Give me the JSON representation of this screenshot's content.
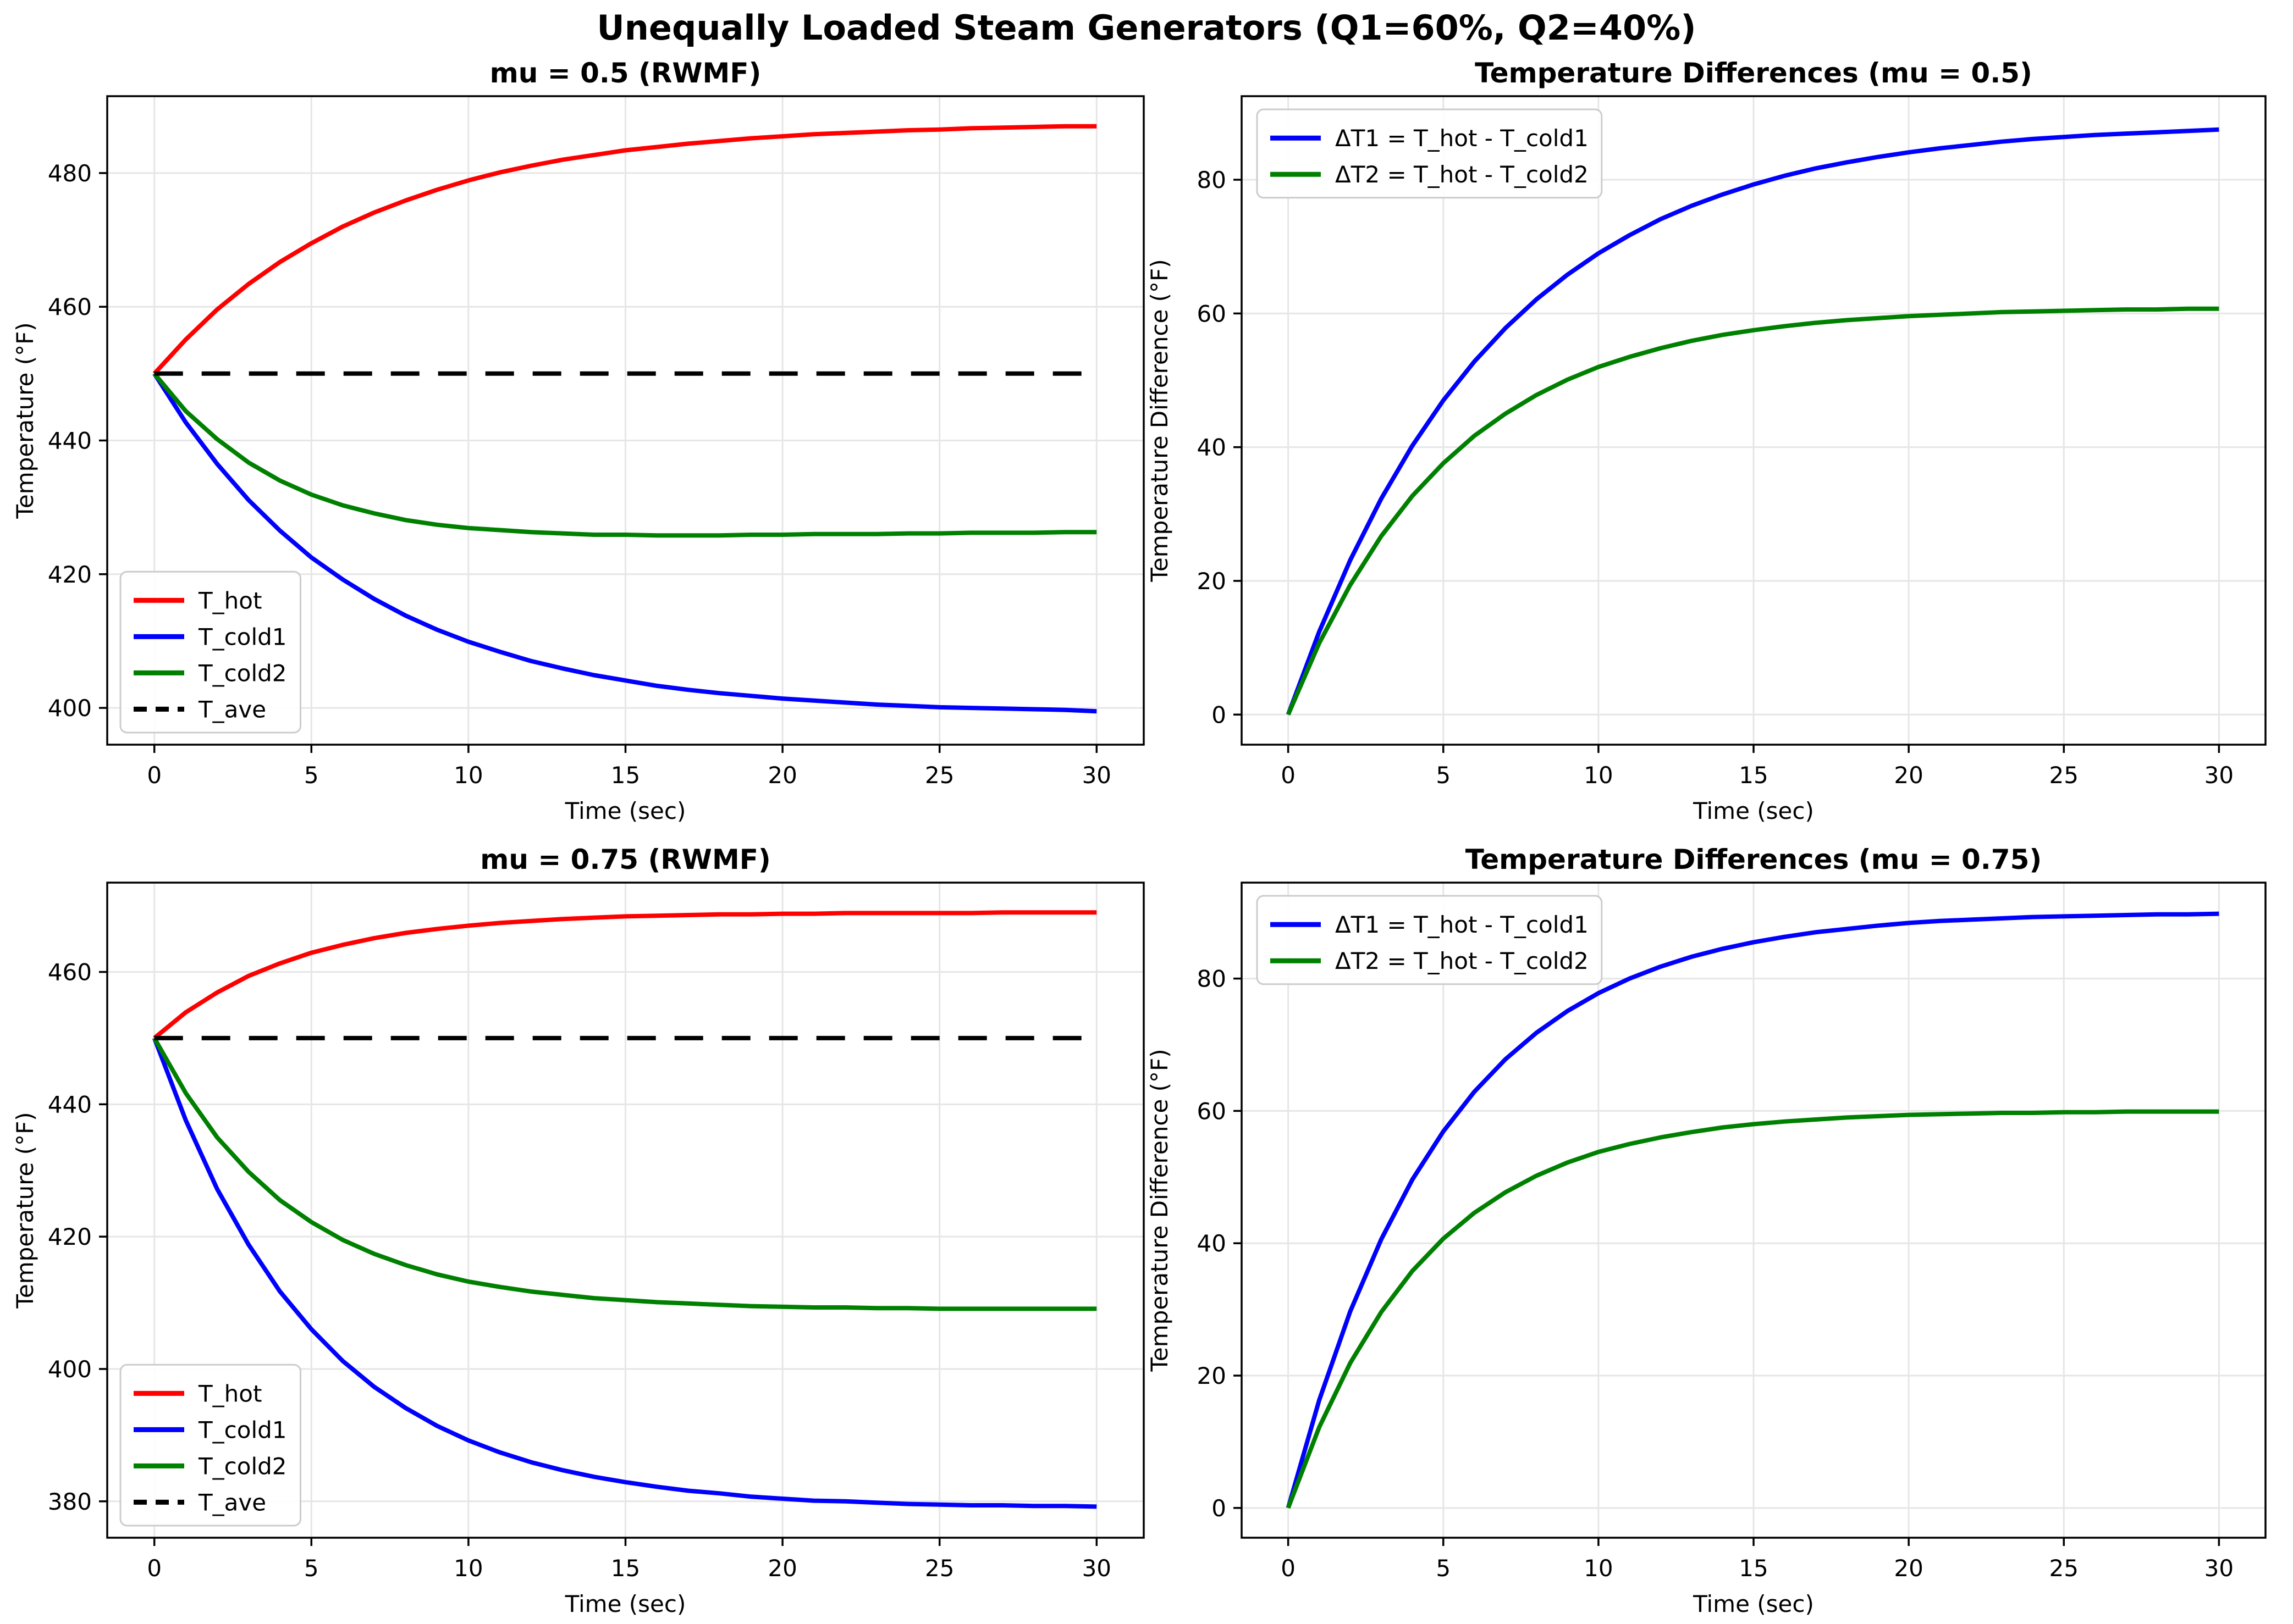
{
  "figure": {
    "suptitle": "Unequally Loaded Steam Generators (Q1=60%, Q2=40%)",
    "background": "#ffffff",
    "grid_color": "#e6e6e6",
    "spine_color": "#000000",
    "legend_border_color": "#cccccc"
  },
  "chart_data": [
    {
      "id": "temperatures-mu-0.5",
      "type": "line",
      "title": "mu = 0.5 (RWMF)",
      "xlabel": "Time (sec)",
      "ylabel": "Temperature (°F)",
      "xlim": [
        -1.5,
        31.5
      ],
      "ylim": [
        394.5,
        491.5
      ],
      "xticks": [
        0,
        5,
        10,
        15,
        20,
        25,
        30
      ],
      "yticks": [
        400,
        420,
        440,
        460,
        480
      ],
      "grid": true,
      "legend_position": "lower-left",
      "x": [
        0,
        1,
        2,
        3,
        4,
        5,
        6,
        7,
        8,
        9,
        10,
        11,
        12,
        13,
        14,
        15,
        16,
        17,
        18,
        19,
        20,
        21,
        22,
        23,
        24,
        25,
        26,
        27,
        28,
        29,
        30
      ],
      "series": [
        {
          "name": "T_hot",
          "color": "#ff0000",
          "style": "solid",
          "values": [
            450.0,
            455.1,
            459.6,
            463.4,
            466.7,
            469.5,
            472.0,
            474.1,
            475.9,
            477.5,
            478.9,
            480.1,
            481.1,
            482.0,
            482.7,
            483.4,
            483.9,
            484.4,
            484.8,
            485.2,
            485.5,
            485.8,
            486.0,
            486.2,
            486.4,
            486.5,
            486.7,
            486.8,
            486.9,
            487.0,
            487.0
          ]
        },
        {
          "name": "T_cold1",
          "color": "#0000ff",
          "style": "solid",
          "values": [
            450.0,
            442.7,
            436.5,
            431.1,
            426.5,
            422.5,
            419.2,
            416.3,
            413.8,
            411.7,
            409.9,
            408.4,
            407.0,
            405.9,
            404.9,
            404.1,
            403.3,
            402.7,
            402.2,
            401.8,
            401.4,
            401.1,
            400.8,
            400.5,
            400.3,
            400.1,
            400.0,
            399.9,
            399.8,
            399.7,
            399.5
          ]
        },
        {
          "name": "T_cold2",
          "color": "#008000",
          "style": "solid",
          "values": [
            450.0,
            444.4,
            440.2,
            436.7,
            434.0,
            431.9,
            430.3,
            429.1,
            428.1,
            427.4,
            426.9,
            426.6,
            426.3,
            426.1,
            425.9,
            425.9,
            425.8,
            425.8,
            425.8,
            425.9,
            425.9,
            426.0,
            426.0,
            426.0,
            426.1,
            426.1,
            426.2,
            426.2,
            426.2,
            426.3,
            426.3
          ]
        },
        {
          "name": "T_ave",
          "color": "#000000",
          "style": "dashed",
          "x": [
            0,
            30
          ],
          "values": [
            450,
            450
          ]
        }
      ]
    },
    {
      "id": "differences-mu-0.5",
      "type": "line",
      "title": "Temperature Differences (mu = 0.5)",
      "xlabel": "Time (sec)",
      "ylabel": "Temperature Difference (°F)",
      "xlim": [
        -1.5,
        31.5
      ],
      "ylim": [
        -4.5,
        92.5
      ],
      "xticks": [
        0,
        5,
        10,
        15,
        20,
        25,
        30
      ],
      "yticks": [
        0,
        20,
        40,
        60,
        80
      ],
      "grid": true,
      "legend_position": "upper-left",
      "x": [
        0,
        1,
        2,
        3,
        4,
        5,
        6,
        7,
        8,
        9,
        10,
        11,
        12,
        13,
        14,
        15,
        16,
        17,
        18,
        19,
        20,
        21,
        22,
        23,
        24,
        25,
        26,
        27,
        28,
        29,
        30
      ],
      "series": [
        {
          "name": "ΔT1 = T_hot - T_cold1",
          "color": "#0000ff",
          "style": "solid",
          "values": [
            0,
            12.4,
            23.1,
            32.3,
            40.2,
            47.0,
            52.8,
            57.8,
            62.1,
            65.8,
            69.0,
            71.7,
            74.1,
            76.1,
            77.8,
            79.3,
            80.6,
            81.7,
            82.6,
            83.4,
            84.1,
            84.7,
            85.2,
            85.7,
            86.1,
            86.4,
            86.7,
            86.9,
            87.1,
            87.3,
            87.5
          ]
        },
        {
          "name": "ΔT2 = T_hot - T_cold2",
          "color": "#008000",
          "style": "solid",
          "values": [
            0,
            10.7,
            19.4,
            26.7,
            32.7,
            37.6,
            41.7,
            45.0,
            47.8,
            50.1,
            52.0,
            53.5,
            54.8,
            55.9,
            56.8,
            57.5,
            58.1,
            58.6,
            59.0,
            59.3,
            59.6,
            59.8,
            60.0,
            60.2,
            60.3,
            60.4,
            60.5,
            60.6,
            60.6,
            60.7,
            60.7
          ]
        }
      ]
    },
    {
      "id": "temperatures-mu-0.75",
      "type": "line",
      "title": "mu = 0.75 (RWMF)",
      "xlabel": "Time (sec)",
      "ylabel": "Temperature (°F)",
      "xlim": [
        -1.5,
        31.5
      ],
      "ylim": [
        374.5,
        473.5
      ],
      "xticks": [
        0,
        5,
        10,
        15,
        20,
        25,
        30
      ],
      "yticks": [
        380,
        400,
        420,
        440,
        460
      ],
      "grid": true,
      "legend_position": "lower-left",
      "x": [
        0,
        1,
        2,
        3,
        4,
        5,
        6,
        7,
        8,
        9,
        10,
        11,
        12,
        13,
        14,
        15,
        16,
        17,
        18,
        19,
        20,
        21,
        22,
        23,
        24,
        25,
        26,
        27,
        28,
        29,
        30
      ],
      "series": [
        {
          "name": "T_hot",
          "color": "#ff0000",
          "style": "solid",
          "values": [
            450.0,
            453.9,
            456.9,
            459.4,
            461.3,
            462.9,
            464.1,
            465.1,
            465.9,
            466.5,
            467.0,
            467.4,
            467.7,
            468.0,
            468.2,
            468.4,
            468.5,
            468.6,
            468.7,
            468.7,
            468.8,
            468.8,
            468.9,
            468.9,
            468.9,
            468.9,
            468.9,
            469.0,
            469.0,
            469.0,
            469.0
          ]
        },
        {
          "name": "T_cold1",
          "color": "#0000ff",
          "style": "solid",
          "values": [
            450.0,
            437.6,
            427.2,
            418.8,
            411.7,
            406.0,
            401.2,
            397.3,
            394.1,
            391.4,
            389.2,
            387.4,
            385.9,
            384.7,
            383.7,
            382.9,
            382.2,
            381.6,
            381.2,
            380.7,
            380.4,
            380.1,
            380.0,
            379.8,
            379.6,
            379.5,
            379.4,
            379.4,
            379.3,
            379.3,
            379.2
          ]
        },
        {
          "name": "T_cold2",
          "color": "#008000",
          "style": "solid",
          "values": [
            450.0,
            441.7,
            435.0,
            429.8,
            425.5,
            422.2,
            419.5,
            417.4,
            415.7,
            414.3,
            413.2,
            412.4,
            411.7,
            411.2,
            410.7,
            410.4,
            410.1,
            409.9,
            409.7,
            409.5,
            409.4,
            409.3,
            409.3,
            409.2,
            409.2,
            409.1,
            409.1,
            409.1,
            409.1,
            409.1,
            409.1
          ]
        },
        {
          "name": "T_ave",
          "color": "#000000",
          "style": "dashed",
          "x": [
            0,
            30
          ],
          "values": [
            450,
            450
          ]
        }
      ]
    },
    {
      "id": "differences-mu-0.75",
      "type": "line",
      "title": "Temperature Differences (mu = 0.75)",
      "xlabel": "Time (sec)",
      "ylabel": "Temperature Difference (°F)",
      "xlim": [
        -1.5,
        31.5
      ],
      "ylim": [
        -4.5,
        94.5
      ],
      "xticks": [
        0,
        5,
        10,
        15,
        20,
        25,
        30
      ],
      "yticks": [
        0,
        20,
        40,
        60,
        80
      ],
      "grid": true,
      "legend_position": "upper-left",
      "x": [
        0,
        1,
        2,
        3,
        4,
        5,
        6,
        7,
        8,
        9,
        10,
        11,
        12,
        13,
        14,
        15,
        16,
        17,
        18,
        19,
        20,
        21,
        22,
        23,
        24,
        25,
        26,
        27,
        28,
        29,
        30
      ],
      "series": [
        {
          "name": "ΔT1 = T_hot - T_cold1",
          "color": "#0000ff",
          "style": "solid",
          "values": [
            0,
            16.3,
            29.7,
            40.6,
            49.6,
            56.9,
            62.9,
            67.8,
            71.8,
            75.1,
            77.8,
            80.0,
            81.8,
            83.3,
            84.5,
            85.5,
            86.3,
            87.0,
            87.5,
            88.0,
            88.4,
            88.7,
            88.9,
            89.1,
            89.3,
            89.4,
            89.5,
            89.6,
            89.7,
            89.7,
            89.8
          ]
        },
        {
          "name": "ΔT2 = T_hot - T_cold2",
          "color": "#008000",
          "style": "solid",
          "values": [
            0,
            12.2,
            21.9,
            29.6,
            35.8,
            40.7,
            44.6,
            47.7,
            50.2,
            52.2,
            53.8,
            55.0,
            56.0,
            56.8,
            57.5,
            58.0,
            58.4,
            58.7,
            59.0,
            59.2,
            59.4,
            59.5,
            59.6,
            59.7,
            59.7,
            59.8,
            59.8,
            59.9,
            59.9,
            59.9,
            59.9
          ]
        }
      ]
    }
  ]
}
